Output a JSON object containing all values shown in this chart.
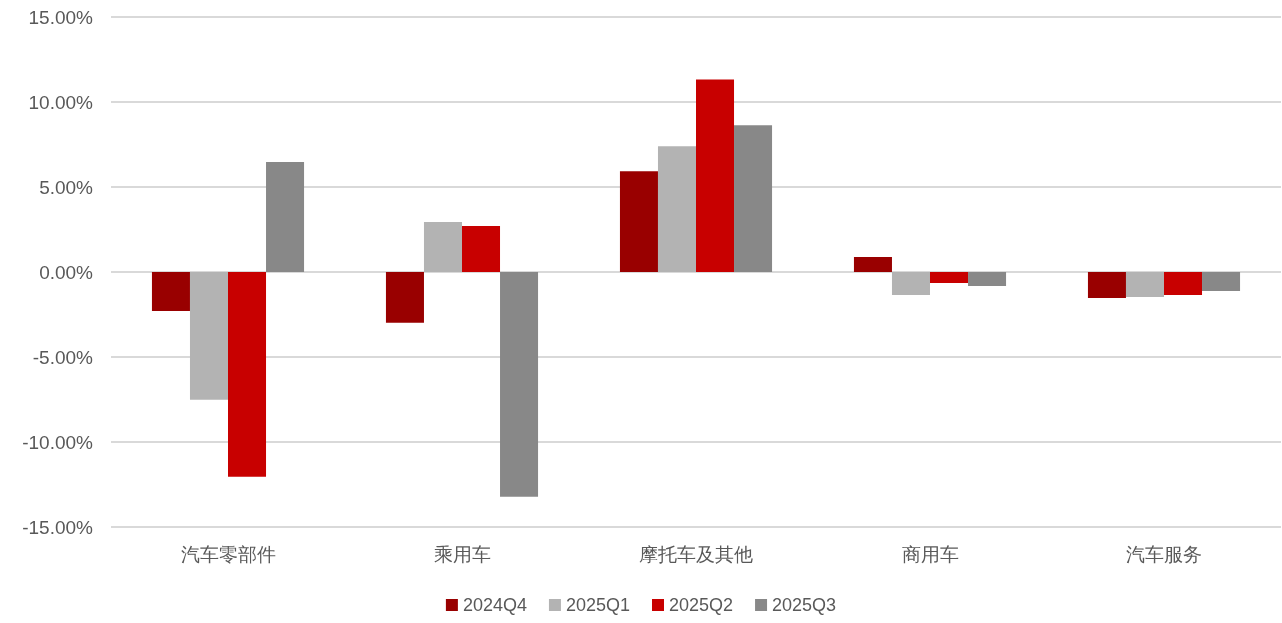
{
  "chart_data": {
    "type": "bar",
    "categories": [
      "汽车零部件",
      "乘用车",
      "摩托车及其他",
      "商用车",
      "汽车服务"
    ],
    "series": [
      {
        "name": "2024Q4",
        "color": "#990000",
        "values": [
          -2.29,
          -2.98,
          5.92,
          0.88,
          -1.53
        ]
      },
      {
        "name": "2025Q1",
        "color": "#b3b3b3",
        "values": [
          -7.51,
          2.94,
          7.39,
          -1.35,
          -1.47
        ]
      },
      {
        "name": "2025Q2",
        "color": "#c80000",
        "values": [
          -12.04,
          2.71,
          11.33,
          -0.65,
          -1.35
        ]
      },
      {
        "name": "2025Q3",
        "color": "#888888",
        "values": [
          6.47,
          -13.22,
          8.63,
          -0.82,
          -1.12
        ]
      }
    ],
    "ylim": [
      -15,
      15
    ],
    "yticks": [
      {
        "value": -15,
        "label": "-15.00%"
      },
      {
        "value": -10,
        "label": "-10.00%"
      },
      {
        "value": -5,
        "label": "-5.00%"
      },
      {
        "value": 0,
        "label": "0.00%"
      },
      {
        "value": 5,
        "label": "5.00%"
      },
      {
        "value": 10,
        "label": "10.00%"
      },
      {
        "value": 15,
        "label": "15.00%"
      }
    ],
    "grid": "y",
    "legend": "bottom"
  }
}
